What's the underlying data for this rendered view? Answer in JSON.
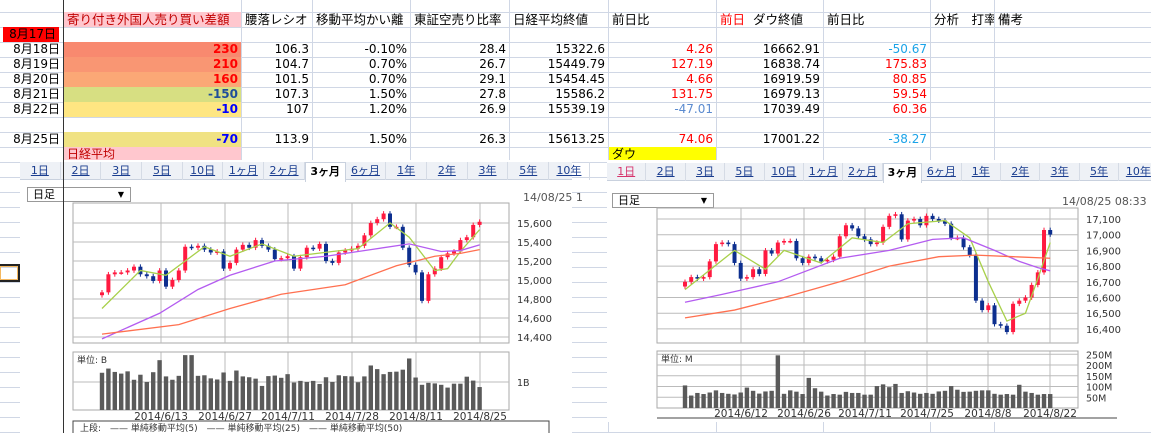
{
  "sheet": {
    "headers": [
      "寄り付き外国人売り買い差額",
      "腰落レシオ",
      "移動平均かい離",
      "東証空売り比率",
      "日経平均終値",
      "前日比",
      "ダウ終値",
      "前日比",
      "分析　打率",
      "備考"
    ],
    "dow_header_prefix": "前日",
    "first_date": "8月17日",
    "rows": [
      {
        "date": "8月18日",
        "foreign": "230",
        "foreign_bg": "#f8896f",
        "foreign_color": "#ff0000",
        "ratio": "106.3",
        "ma_dev": "-0.10%",
        "short_ratio": "28.4",
        "nikkei": "15322.6",
        "nikkei_chg": "4.26",
        "nikkei_chg_color": "#ff0000",
        "dow": "16662.91",
        "dow_chg": "-50.67",
        "dow_chg_color": "#1aa3e8"
      },
      {
        "date": "8月19日",
        "foreign": "210",
        "foreign_bg": "#f99673",
        "foreign_color": "#ff0000",
        "ratio": "104.7",
        "ma_dev": "0.70%",
        "short_ratio": "26.7",
        "nikkei": "15449.79",
        "nikkei_chg": "127.19",
        "nikkei_chg_color": "#ff0000",
        "dow": "16838.74",
        "dow_chg": "175.83",
        "dow_chg_color": "#ff0000"
      },
      {
        "date": "8月20日",
        "foreign": "160",
        "foreign_bg": "#fba876",
        "foreign_color": "#ff0000",
        "ratio": "101.5",
        "ma_dev": "0.70%",
        "short_ratio": "29.1",
        "nikkei": "15454.45",
        "nikkei_chg": "4.66",
        "nikkei_chg_color": "#ff0000",
        "dow": "16919.59",
        "dow_chg": "80.85",
        "dow_chg_color": "#ff0000"
      },
      {
        "date": "8月21日",
        "foreign": "-150",
        "foreign_bg": "#d7df82",
        "foreign_color": "#1f4e9a",
        "ratio": "107.3",
        "ma_dev": "1.50%",
        "short_ratio": "27.8",
        "nikkei": "15586.2",
        "nikkei_chg": "131.75",
        "nikkei_chg_color": "#ff0000",
        "dow": "16979.13",
        "dow_chg": "59.54",
        "dow_chg_color": "#ff0000"
      },
      {
        "date": "8月22日",
        "foreign": "-10",
        "foreign_bg": "#fee682",
        "foreign_color": "#0000ff",
        "ratio": "107",
        "ma_dev": "1.20%",
        "short_ratio": "26.9",
        "nikkei": "15539.19",
        "nikkei_chg": "-47.01",
        "nikkei_chg_color": "#5b8bd0",
        "dow": "17039.49",
        "dow_chg": "60.36",
        "dow_chg_color": "#ff0000"
      },
      null,
      {
        "date": "8月25日",
        "foreign": "-70",
        "foreign_bg": "#f0e283",
        "foreign_color": "#0000ff",
        "ratio": "113.9",
        "ma_dev": "1.50%",
        "short_ratio": "26.3",
        "nikkei": "15613.25",
        "nikkei_chg": "74.06",
        "nikkei_chg_color": "#ff0000",
        "dow": "17001.22",
        "dow_chg": "-38.27",
        "dow_chg_color": "#1aa3e8"
      }
    ],
    "nikkei_label": "日経平均",
    "dow_label": "ダウ"
  },
  "colors": {
    "header_pink": "#ffc7ce",
    "date_red": "#ff0000",
    "dow_yellow": "#ffff00",
    "candle_up": "#ff1a40",
    "candle_down": "#0d2f8f",
    "ma5": "#a8d04a",
    "ma25": "#b45cf0",
    "ma50": "#ff7050",
    "volume": "#5a5a5a"
  },
  "left_widget": {
    "tabs": [
      "1日",
      "2日",
      "3日",
      "5日",
      "10日",
      "1ヶ月",
      "2ヶ月",
      "3ヶ月",
      "6ヶ月",
      "1年",
      "2年",
      "3年",
      "5年",
      "10年"
    ],
    "active_tab": "3ヶ月",
    "select_value": "日足",
    "timestamp": "14/08/25 1",
    "volume_unit": "単位: B",
    "legend": "上段:　—— 単純移動平均(5)　—— 単純移動平均(25)　—— 単純移動平均(50)"
  },
  "right_widget": {
    "tabs": [
      "1日",
      "2日",
      "3日",
      "5日",
      "10日",
      "1ヶ月",
      "2ヶ月",
      "3ヶ月",
      "6ヶ月",
      "1年",
      "2年",
      "3年",
      "5年",
      "10年"
    ],
    "active_tab": "3ヶ月",
    "select_value": "日足",
    "timestamp": "14/08/25 08:33",
    "volume_unit": "単位: M"
  },
  "chart_data": [
    {
      "type": "candlestick",
      "ylim": [
        14400,
        15600
      ],
      "yticks": [
        "14,400",
        "14,600",
        "14,800",
        "15,000",
        "15,200",
        "15,400",
        "15,600"
      ],
      "ytick_values": [
        14400,
        14600,
        14800,
        15000,
        15200,
        15400,
        15600
      ],
      "xticks": [
        "2014/6/13",
        "2014/6/27",
        "2014/7/11",
        "2014/7/28",
        "2014/8/11",
        "2014/8/25"
      ],
      "close": [
        14870,
        15060,
        15080,
        15080,
        15100,
        15140,
        15060,
        15040,
        14990,
        15100,
        14930,
        15000,
        15100,
        15350,
        15340,
        15360,
        15320,
        15290,
        15300,
        15120,
        15180,
        15320,
        15370,
        15340,
        15420,
        15360,
        15320,
        15220,
        15230,
        15250,
        15120,
        15240,
        15340,
        15330,
        15380,
        15200,
        15180,
        15290,
        15310,
        15330,
        15360,
        15470,
        15600,
        15640,
        15700,
        15560,
        15560,
        15340,
        15160,
        15080,
        14780,
        15060,
        15120,
        15240,
        15280,
        15300,
        15420,
        15450,
        15580,
        15613
      ],
      "volume_unit": "B",
      "volume_ticks": [
        "1B"
      ],
      "volume_tick_values": [
        1
      ],
      "volume": [
        1.33,
        1.48,
        1.36,
        1.3,
        1.38,
        1.08,
        1.26,
        1.0,
        1.35,
        1.78,
        1.2,
        1.08,
        1.22,
        1.96,
        1.96,
        1.22,
        1.24,
        1.13,
        1.09,
        1.34,
        1.04,
        1.41,
        1.2,
        1.17,
        1.12,
        0.86,
        1.21,
        1.23,
        1.15,
        1.28,
        0.98,
        1.04,
        1.0,
        1.04,
        0.93,
        1.17,
        1.0,
        1.24,
        1.21,
        1.2,
        0.99,
        1.2,
        1.59,
        1.46,
        1.28,
        1.36,
        1.37,
        1.44,
        1.84,
        1.16,
        0.9,
        0.97,
        0.95,
        0.9,
        0.8,
        0.94,
        0.94,
        1.19,
        1.05,
        0.82
      ],
      "ma5": [
        [
          0,
          14700
        ],
        [
          6,
          15100
        ],
        [
          10,
          15050
        ],
        [
          16,
          15350
        ],
        [
          20,
          15250
        ],
        [
          25,
          15380
        ],
        [
          30,
          15250
        ],
        [
          36,
          15300
        ],
        [
          40,
          15330
        ],
        [
          45,
          15600
        ],
        [
          48,
          15450
        ],
        [
          52,
          15100
        ],
        [
          54,
          15120
        ],
        [
          56,
          15300
        ],
        [
          59,
          15530
        ]
      ],
      "ma25": [
        [
          0,
          14380
        ],
        [
          9,
          14650
        ],
        [
          15,
          14900
        ],
        [
          20,
          15050
        ],
        [
          27,
          15200
        ],
        [
          35,
          15250
        ],
        [
          42,
          15320
        ],
        [
          48,
          15380
        ],
        [
          53,
          15300
        ],
        [
          56,
          15310
        ],
        [
          59,
          15370
        ]
      ],
      "ma50": [
        [
          0,
          14430
        ],
        [
          12,
          14530
        ],
        [
          20,
          14700
        ],
        [
          28,
          14850
        ],
        [
          38,
          14950
        ],
        [
          46,
          15150
        ],
        [
          52,
          15250
        ],
        [
          56,
          15280
        ],
        [
          59,
          15320
        ]
      ]
    },
    {
      "type": "candlestick",
      "ylim": [
        16400,
        17100
      ],
      "yticks": [
        "16,400",
        "16,500",
        "16,600",
        "16,700",
        "16,800",
        "16,900",
        "17,000",
        "17,100"
      ],
      "ytick_values": [
        16400,
        16500,
        16600,
        16700,
        16800,
        16900,
        17000,
        17100
      ],
      "xticks": [
        "2014/6/12",
        "2014/6/26",
        "2014/7/11",
        "2014/7/25",
        "2014/8/8",
        "2014/8/22"
      ],
      "close": [
        16700,
        16730,
        16720,
        16730,
        16830,
        16940,
        16950,
        16940,
        16820,
        16720,
        16730,
        16780,
        16750,
        16900,
        16880,
        16950,
        16960,
        16960,
        16850,
        16820,
        16860,
        16850,
        16830,
        16840,
        16860,
        16990,
        17060,
        17040,
        16990,
        16970,
        16940,
        16950,
        17050,
        17120,
        17130,
        16970,
        17090,
        17100,
        17060,
        17120,
        17100,
        17090,
        17070,
        16980,
        16980,
        16920,
        16870,
        16580,
        16520,
        16550,
        16430,
        16420,
        16380,
        16560,
        16580,
        16600,
        16680,
        16760,
        17030,
        17001
      ],
      "volume_unit": "M",
      "volume_ticks": [
        "50M",
        "100M",
        "150M",
        "200M",
        "250M"
      ],
      "volume_tick_values": [
        50,
        100,
        150,
        200,
        250
      ],
      "volume": [
        105,
        58,
        70,
        65,
        72,
        82,
        70,
        66,
        63,
        72,
        95,
        80,
        67,
        77,
        80,
        245,
        66,
        82,
        76,
        65,
        140,
        92,
        76,
        58,
        65,
        62,
        75,
        70,
        70,
        62,
        62,
        102,
        110,
        97,
        112,
        70,
        78,
        72,
        66,
        70,
        66,
        77,
        80,
        102,
        85,
        75,
        76,
        80,
        82,
        82,
        66,
        62,
        65,
        62,
        108,
        76,
        70,
        62,
        65,
        65
      ],
      "ma5": [
        [
          0,
          16650
        ],
        [
          8,
          16900
        ],
        [
          13,
          16780
        ],
        [
          16,
          16900
        ],
        [
          22,
          16820
        ],
        [
          27,
          16980
        ],
        [
          32,
          16950
        ],
        [
          36,
          17070
        ],
        [
          42,
          17090
        ],
        [
          46,
          16980
        ],
        [
          49,
          16700
        ],
        [
          52,
          16450
        ],
        [
          55,
          16500
        ],
        [
          57,
          16720
        ],
        [
          59,
          16950
        ]
      ],
      "ma25": [
        [
          0,
          16570
        ],
        [
          6,
          16620
        ],
        [
          15,
          16700
        ],
        [
          25,
          16850
        ],
        [
          33,
          16900
        ],
        [
          40,
          16970
        ],
        [
          45,
          16980
        ],
        [
          50,
          16900
        ],
        [
          54,
          16830
        ],
        [
          57,
          16790
        ],
        [
          59,
          16770
        ]
      ],
      "ma50": [
        [
          0,
          16470
        ],
        [
          8,
          16520
        ],
        [
          16,
          16600
        ],
        [
          25,
          16700
        ],
        [
          33,
          16800
        ],
        [
          41,
          16860
        ],
        [
          47,
          16870
        ],
        [
          53,
          16860
        ],
        [
          59,
          16850
        ]
      ]
    }
  ]
}
